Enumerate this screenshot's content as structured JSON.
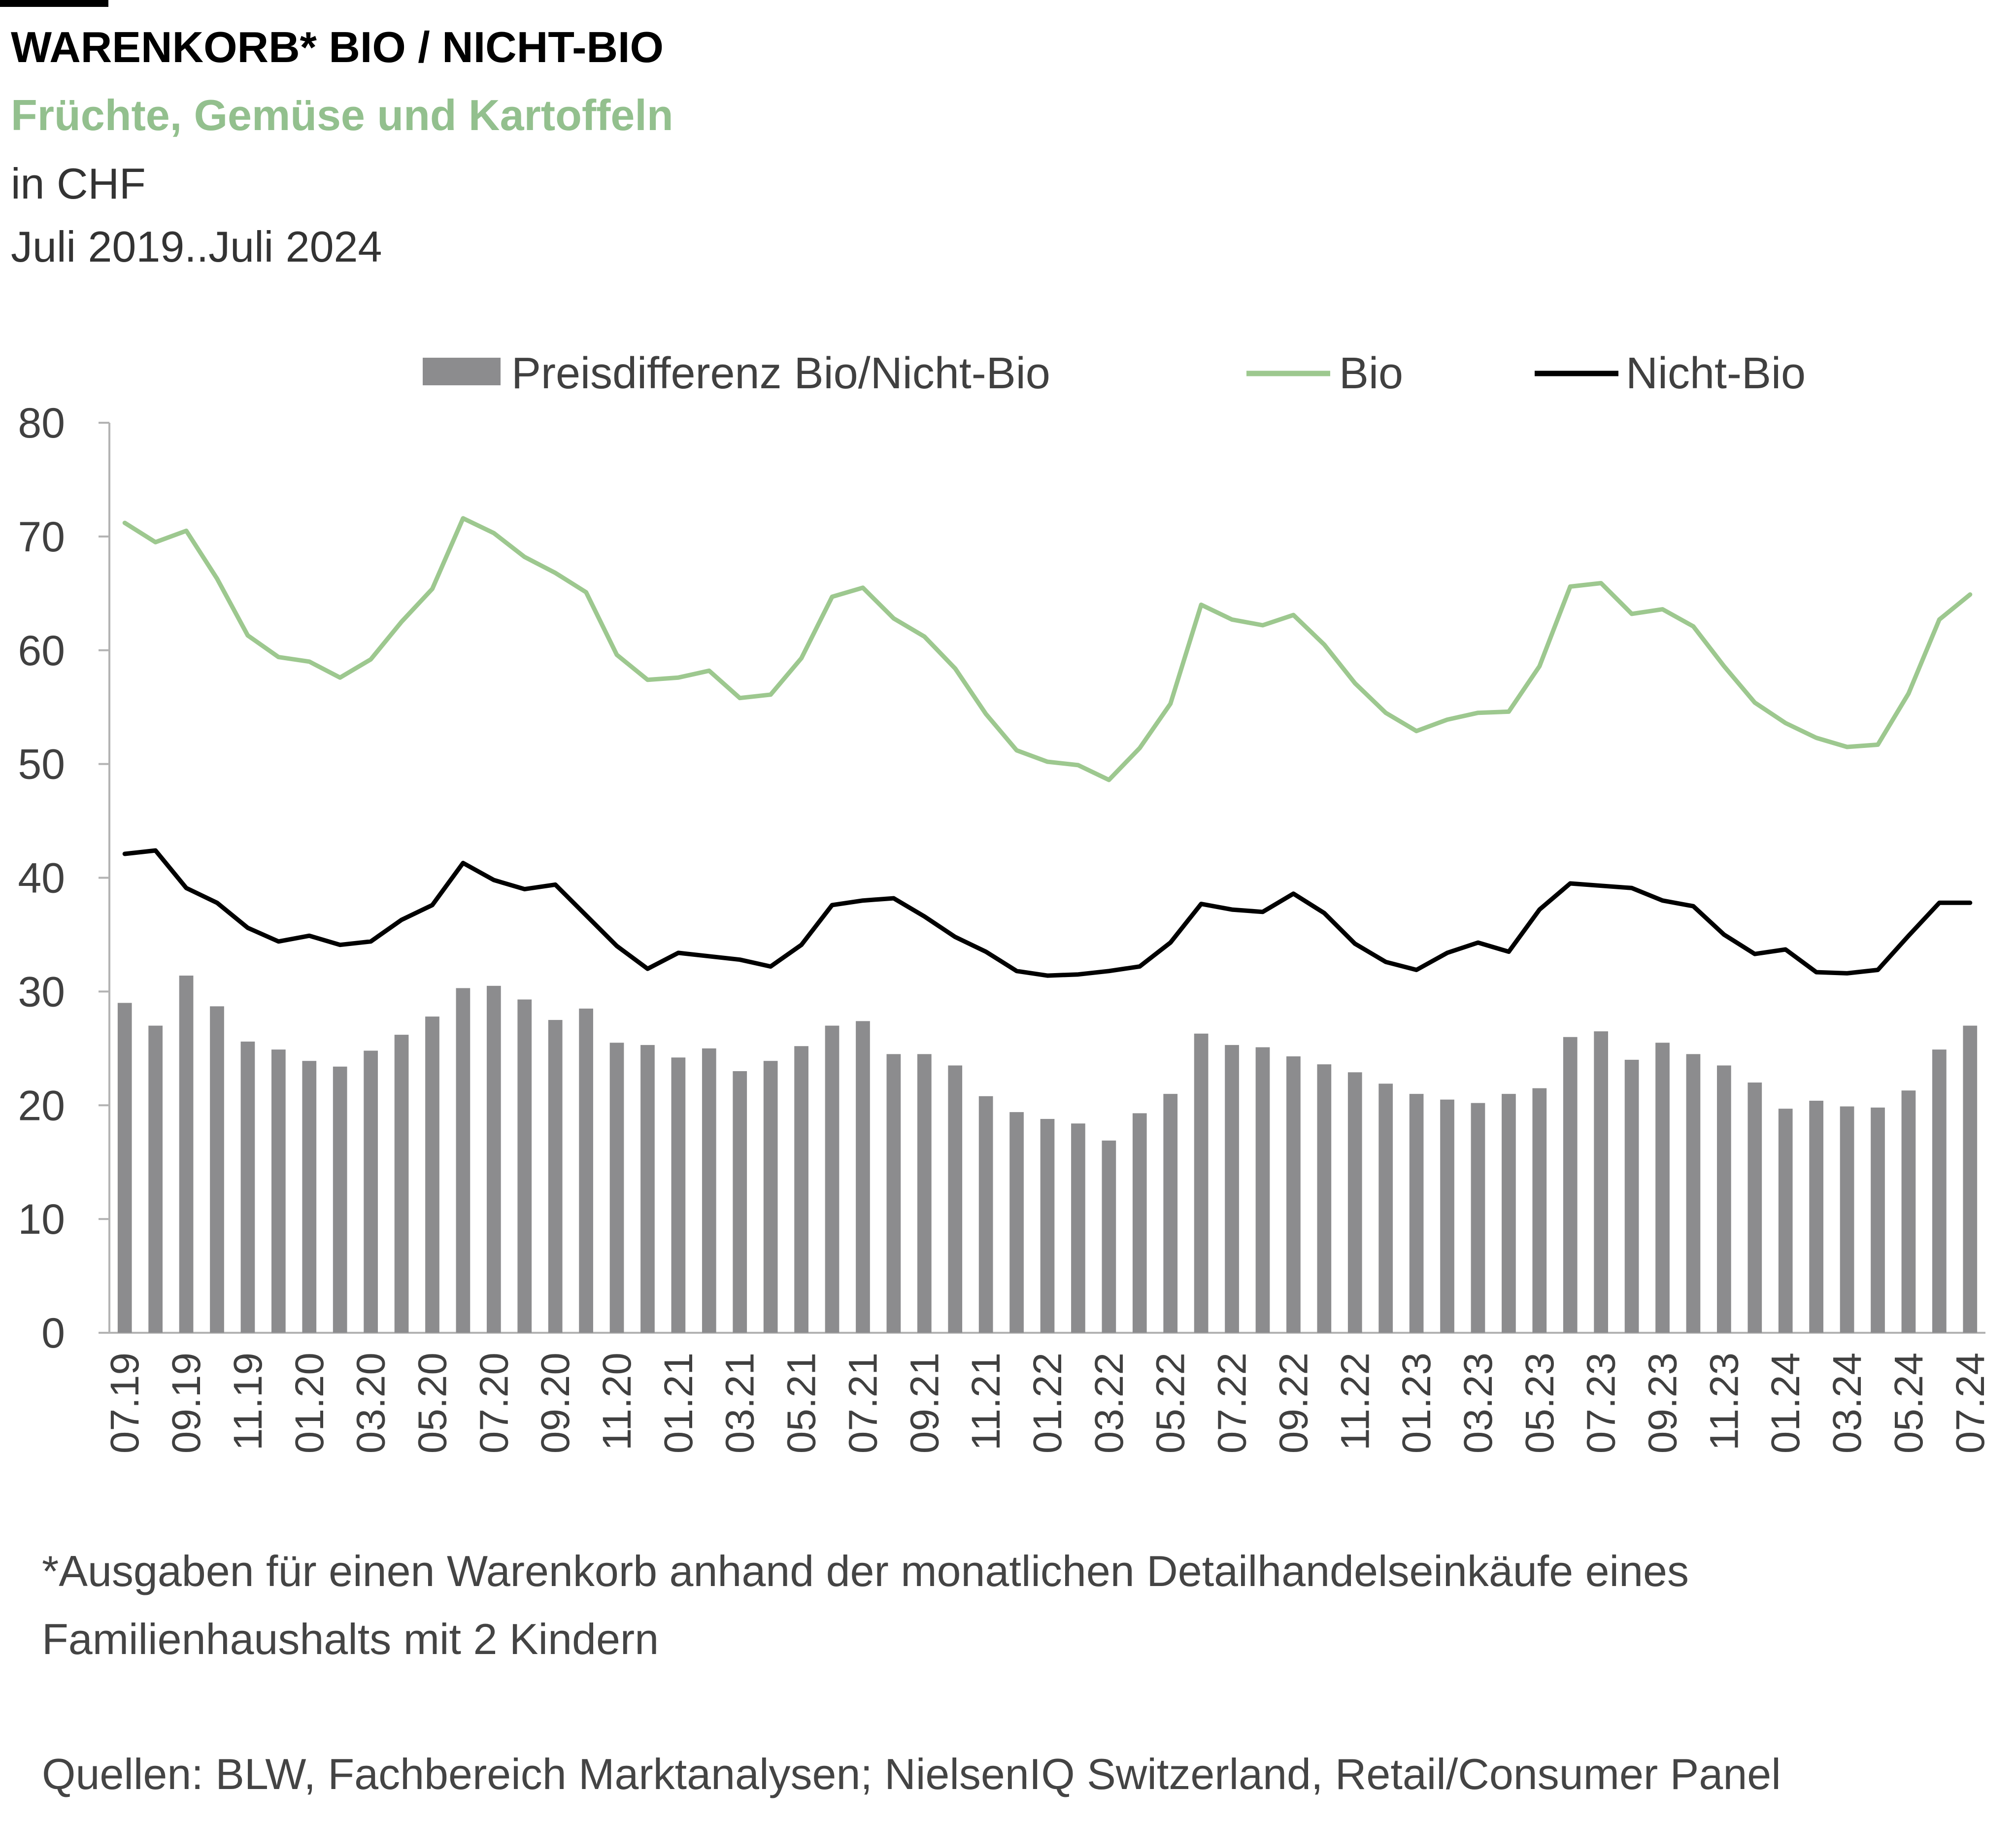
{
  "header": {
    "title": "WARENKORB* BIO / NICHT-BIO",
    "subtitle": "Früchte, Gemüse und Kartoffeln",
    "unit": "in CHF",
    "period": "Juli 2019..Juli 2024"
  },
  "footer": {
    "footnote": "*Ausgaben für einen Warenkorb anhand der monatlichen Detailhandelseinkäufe eines Familienhaushalts mit 2 Kindern",
    "sources": "Quellen: BLW, Fachbereich Marktanalysen; NielsenIQ Switzerland, Retail/Consumer Panel"
  },
  "colors": {
    "bars": "#8c8c8e",
    "bio": "#9dc88f",
    "nicht_bio": "#000000",
    "axis": "#b3b3b3"
  },
  "chart_data": {
    "type": "bar",
    "ylim": [
      0,
      80
    ],
    "yticks": [
      0,
      10,
      20,
      30,
      40,
      50,
      60,
      70,
      80
    ],
    "grid": false,
    "legend_position": "top",
    "x_tick_labels": [
      "07.19",
      "09.19",
      "11.19",
      "01.20",
      "03.20",
      "05.20",
      "07.20",
      "09.20",
      "11.20",
      "01.21",
      "03.21",
      "05.21",
      "07.21",
      "09.21",
      "11.21",
      "01.22",
      "03.22",
      "05.22",
      "07.22",
      "09.22",
      "11.22",
      "01.23",
      "03.23",
      "05.23",
      "07.23",
      "09.23",
      "11.23",
      "01.24",
      "03.24",
      "05.24",
      "07.24"
    ],
    "x": [
      "07.19",
      "08.19",
      "09.19",
      "10.19",
      "11.19",
      "12.19",
      "01.20",
      "02.20",
      "03.20",
      "04.20",
      "05.20",
      "06.20",
      "07.20",
      "08.20",
      "09.20",
      "10.20",
      "11.20",
      "12.20",
      "01.21",
      "02.21",
      "03.21",
      "04.21",
      "05.21",
      "06.21",
      "07.21",
      "08.21",
      "09.21",
      "10.21",
      "11.21",
      "12.21",
      "01.22",
      "02.22",
      "03.22",
      "04.22",
      "05.22",
      "06.22",
      "07.22",
      "08.22",
      "09.22",
      "10.22",
      "11.22",
      "12.22",
      "01.23",
      "02.23",
      "03.23",
      "04.23",
      "05.23",
      "06.23",
      "07.23",
      "08.23",
      "09.23",
      "10.23",
      "11.23",
      "12.23",
      "01.24",
      "02.24",
      "03.24",
      "04.24",
      "05.24",
      "06.24",
      "07.24"
    ],
    "series": [
      {
        "name": "Preisdifferenz Bio/Nicht-Bio",
        "type": "bar",
        "values": [
          29.0,
          27.0,
          31.4,
          28.7,
          25.6,
          24.9,
          23.9,
          23.4,
          24.8,
          26.2,
          27.8,
          30.3,
          30.5,
          29.3,
          27.5,
          28.5,
          25.5,
          25.3,
          24.2,
          25.0,
          23.0,
          23.9,
          25.2,
          27.0,
          27.4,
          24.5,
          24.5,
          23.5,
          20.8,
          19.4,
          18.8,
          18.4,
          16.9,
          19.3,
          21.0,
          26.3,
          25.3,
          25.1,
          24.3,
          23.6,
          22.9,
          21.9,
          21.0,
          20.5,
          20.2,
          21.0,
          21.5,
          26.0,
          26.5,
          24.0,
          25.5,
          24.5,
          23.5,
          22.0,
          19.7,
          20.4,
          19.9,
          19.8,
          21.3,
          24.9,
          27.0
        ]
      },
      {
        "name": "Bio",
        "type": "line",
        "values": [
          71.2,
          69.5,
          70.5,
          66.3,
          61.3,
          59.4,
          59.0,
          57.6,
          59.2,
          62.5,
          65.4,
          71.6,
          70.3,
          68.2,
          66.8,
          65.1,
          59.6,
          57.4,
          57.6,
          58.2,
          55.8,
          56.1,
          59.3,
          64.7,
          65.5,
          62.8,
          61.2,
          58.4,
          54.4,
          51.2,
          50.2,
          49.9,
          48.6,
          51.4,
          55.3,
          64.0,
          62.7,
          62.2,
          63.1,
          60.5,
          57.1,
          54.5,
          52.9,
          53.9,
          54.5,
          54.6,
          58.6,
          65.6,
          65.9,
          63.2,
          63.6,
          62.1,
          58.6,
          55.4,
          53.6,
          52.3,
          51.5,
          51.7,
          56.2,
          62.7,
          64.9
        ]
      },
      {
        "name": "Nicht-Bio",
        "type": "line",
        "values": [
          42.1,
          42.4,
          39.1,
          37.8,
          35.6,
          34.4,
          34.9,
          34.1,
          34.4,
          36.3,
          37.6,
          41.3,
          39.8,
          39.0,
          39.4,
          36.7,
          34.0,
          32.0,
          33.4,
          33.1,
          32.8,
          32.2,
          34.1,
          37.6,
          38.0,
          38.2,
          36.6,
          34.8,
          33.5,
          31.8,
          31.4,
          31.5,
          31.8,
          32.2,
          34.3,
          37.7,
          37.2,
          37.0,
          38.6,
          36.9,
          34.2,
          32.6,
          31.9,
          33.4,
          34.3,
          33.5,
          37.2,
          39.5,
          39.3,
          39.1,
          38.0,
          37.5,
          35.0,
          33.3,
          33.7,
          31.7,
          31.6,
          31.9,
          34.9,
          37.8,
          37.8
        ]
      }
    ]
  }
}
